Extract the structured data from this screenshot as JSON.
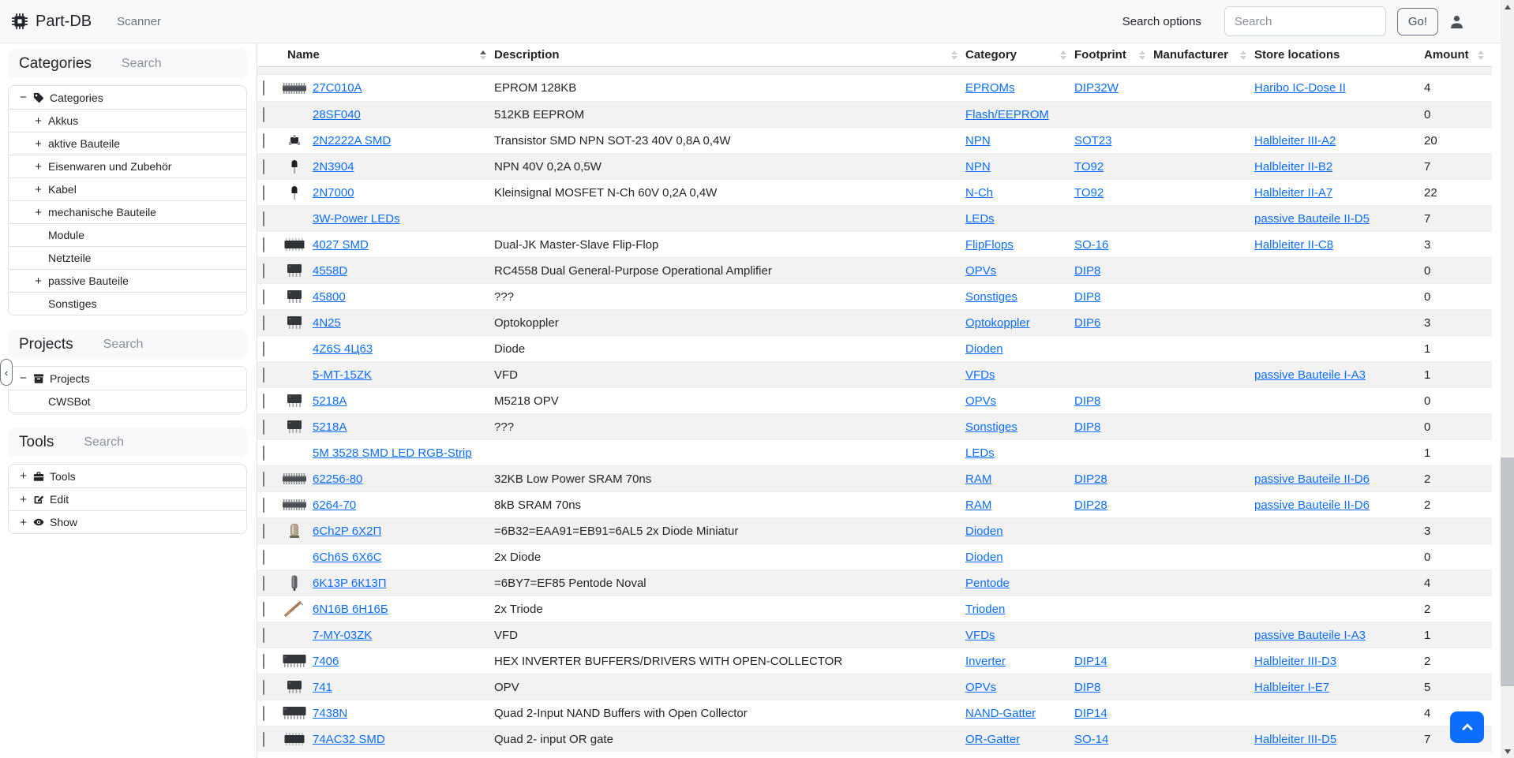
{
  "navbar": {
    "brand": "Part-DB",
    "items": [
      {
        "label": "Scanner"
      }
    ],
    "search_options_label": "Search options",
    "search_placeholder": "Search",
    "go_label": "Go!"
  },
  "sidebar": {
    "panels": [
      {
        "id": "categories",
        "title": "Categories",
        "search_placeholder": "Search",
        "items": [
          {
            "label": "Categories",
            "toggle": "minus",
            "icon": "tag-icon",
            "level": 0
          },
          {
            "label": "Akkus",
            "toggle": "plus",
            "icon": null,
            "level": 1
          },
          {
            "label": "aktive Bauteile",
            "toggle": "plus",
            "icon": null,
            "level": 1
          },
          {
            "label": "Eisenwaren und Zubehör",
            "toggle": "plus",
            "icon": null,
            "level": 1
          },
          {
            "label": "Kabel",
            "toggle": "plus",
            "icon": null,
            "level": 1
          },
          {
            "label": "mechanische Bauteile",
            "toggle": "plus",
            "icon": null,
            "level": 1
          },
          {
            "label": "Module",
            "toggle": "none",
            "icon": null,
            "level": 1
          },
          {
            "label": "Netzteile",
            "toggle": "none",
            "icon": null,
            "level": 1
          },
          {
            "label": "passive Bauteile",
            "toggle": "plus",
            "icon": null,
            "level": 1
          },
          {
            "label": "Sonstiges",
            "toggle": "none",
            "icon": null,
            "level": 1
          }
        ]
      },
      {
        "id": "projects",
        "title": "Projects",
        "search_placeholder": "Search",
        "items": [
          {
            "label": "Projects",
            "toggle": "minus",
            "icon": "archive-icon",
            "level": 0
          },
          {
            "label": "CWSBot",
            "toggle": "none",
            "icon": null,
            "level": 1
          }
        ]
      },
      {
        "id": "tools",
        "title": "Tools",
        "search_placeholder": "Search",
        "items": [
          {
            "label": "Tools",
            "toggle": "plus",
            "icon": "toolbox-icon",
            "level": 0
          },
          {
            "label": "Edit",
            "toggle": "plus",
            "icon": "pencil-square-icon",
            "level": 0
          },
          {
            "label": "Show",
            "toggle": "plus",
            "icon": "eye-icon",
            "level": 0
          }
        ]
      }
    ]
  },
  "table": {
    "columns": [
      {
        "label": "Name",
        "sort": "asc"
      },
      {
        "label": "Description",
        "sort": "unsorted"
      },
      {
        "label": "Category",
        "sort": "unsorted"
      },
      {
        "label": "Footprint",
        "sort": "unsorted"
      },
      {
        "label": "Manufacturer",
        "sort": "unsorted"
      },
      {
        "label": "Store locations",
        "sort": "none"
      },
      {
        "label": "Amount",
        "sort": "unsorted"
      }
    ],
    "rows": [
      {
        "name": "27C010A",
        "description": "EPROM 128KB",
        "category": "EPROMs",
        "footprint": "DIP32W",
        "manufacturer": "",
        "store_location": "Haribo IC-Dose II",
        "amount": "4",
        "thumb": "dip-long"
      },
      {
        "name": "28SF040",
        "description": "512KB EEPROM",
        "category": "Flash/EEPROM",
        "footprint": "",
        "manufacturer": "",
        "store_location": "",
        "amount": "0",
        "thumb": null
      },
      {
        "name": "2N2222A SMD",
        "description": "Transistor SMD NPN SOT-23 40V 0,8A 0,4W",
        "category": "NPN",
        "footprint": "SOT23",
        "manufacturer": "",
        "store_location": "Halbleiter III-A2",
        "amount": "20",
        "thumb": "sot23"
      },
      {
        "name": "2N3904",
        "description": "NPN 40V 0,2A 0,5W",
        "category": "NPN",
        "footprint": "TO92",
        "manufacturer": "",
        "store_location": "Halbleiter II-B2",
        "amount": "7",
        "thumb": "to92"
      },
      {
        "name": "2N7000",
        "description": "Kleinsignal MOSFET N-Ch 60V 0,2A 0,4W",
        "category": "N-Ch",
        "footprint": "TO92",
        "manufacturer": "",
        "store_location": "Halbleiter II-A7",
        "amount": "22",
        "thumb": "to92"
      },
      {
        "name": "3W-Power LEDs",
        "description": "",
        "category": "LEDs",
        "footprint": "",
        "manufacturer": "",
        "store_location": "passive Bauteile II-D5",
        "amount": "7",
        "thumb": null
      },
      {
        "name": "4027 SMD",
        "description": "Dual-JK Master-Slave Flip-Flop",
        "category": "FlipFlops",
        "footprint": "SO-16",
        "manufacturer": "",
        "store_location": "Halbleiter II-C8",
        "amount": "3",
        "thumb": "soic"
      },
      {
        "name": "4558D",
        "description": "RC4558 Dual General-Purpose Operational Amplifier",
        "category": "OPVs",
        "footprint": "DIP8",
        "manufacturer": "",
        "store_location": "",
        "amount": "0",
        "thumb": "dip8"
      },
      {
        "name": "45800",
        "description": "???",
        "category": "Sonstiges",
        "footprint": "DIP8",
        "manufacturer": "",
        "store_location": "",
        "amount": "0",
        "thumb": "dip8"
      },
      {
        "name": "4N25",
        "description": "Optokoppler",
        "category": "Optokoppler",
        "footprint": "DIP6",
        "manufacturer": "",
        "store_location": "",
        "amount": "3",
        "thumb": "dip8"
      },
      {
        "name": "4Z6S 4Ц63",
        "description": "Diode",
        "category": "Dioden",
        "footprint": "",
        "manufacturer": "",
        "store_location": "",
        "amount": "1",
        "thumb": null
      },
      {
        "name": "5-MT-15ZK",
        "description": "VFD",
        "category": "VFDs",
        "footprint": "",
        "manufacturer": "",
        "store_location": "passive Bauteile I-A3",
        "amount": "1",
        "thumb": null
      },
      {
        "name": "5218A",
        "description": "M5218 OPV",
        "category": "OPVs",
        "footprint": "DIP8",
        "manufacturer": "",
        "store_location": "",
        "amount": "0",
        "thumb": "dip8"
      },
      {
        "name": "5218A",
        "description": "???",
        "category": "Sonstiges",
        "footprint": "DIP8",
        "manufacturer": "",
        "store_location": "",
        "amount": "0",
        "thumb": "dip8"
      },
      {
        "name": "5M 3528 SMD LED RGB-Strip",
        "description": "",
        "category": "LEDs",
        "footprint": "",
        "manufacturer": "",
        "store_location": "",
        "amount": "1",
        "thumb": null
      },
      {
        "name": "62256-80",
        "description": "32KB Low Power SRAM 70ns",
        "category": "RAM",
        "footprint": "DIP28",
        "manufacturer": "",
        "store_location": "passive Bauteile II-D6",
        "amount": "2",
        "thumb": "dip-long"
      },
      {
        "name": "6264-70",
        "description": "8kB SRAM 70ns",
        "category": "RAM",
        "footprint": "DIP28",
        "manufacturer": "",
        "store_location": "passive Bauteile II-D6",
        "amount": "2",
        "thumb": "dip-long"
      },
      {
        "name": "6Ch2P 6Х2П",
        "description": "=6B32=EAA91=EB91=6AL5 2x Diode Miniatur",
        "category": "Dioden",
        "footprint": "",
        "manufacturer": "",
        "store_location": "",
        "amount": "3",
        "thumb": "tube"
      },
      {
        "name": "6Ch6S 6X6C",
        "description": "2x Diode",
        "category": "Dioden",
        "footprint": "",
        "manufacturer": "",
        "store_location": "",
        "amount": "0",
        "thumb": null
      },
      {
        "name": "6K13P 6К13П",
        "description": "=6BY7=EF85 Pentode Noval",
        "category": "Pentode",
        "footprint": "",
        "manufacturer": "",
        "store_location": "",
        "amount": "4",
        "thumb": "tube-v"
      },
      {
        "name": "6N16B 6Н16Б",
        "description": "2x Triode",
        "category": "Trioden",
        "footprint": "",
        "manufacturer": "",
        "store_location": "",
        "amount": "2",
        "thumb": "tube-d"
      },
      {
        "name": "7-MY-03ZK",
        "description": "VFD",
        "category": "VFDs",
        "footprint": "",
        "manufacturer": "",
        "store_location": "passive Bauteile I-A3",
        "amount": "1",
        "thumb": null
      },
      {
        "name": "7406",
        "description": "HEX INVERTER BUFFERS/DRIVERS WITH OPEN-COLLECTOR",
        "category": "Inverter",
        "footprint": "DIP14",
        "manufacturer": "",
        "store_location": "Halbleiter III-D3",
        "amount": "2",
        "thumb": "dip14"
      },
      {
        "name": "741",
        "description": "OPV",
        "category": "OPVs",
        "footprint": "DIP8",
        "manufacturer": "",
        "store_location": "Halbleiter I-E7",
        "amount": "5",
        "thumb": "dip8"
      },
      {
        "name": "7438N",
        "description": "Quad 2-Input NAND Buffers with Open Collector",
        "category": "NAND-Gatter",
        "footprint": "DIP14",
        "manufacturer": "",
        "store_location": "",
        "amount": "4",
        "thumb": "dip14"
      },
      {
        "name": "74AC32 SMD",
        "description": "Quad 2- input OR gate",
        "category": "OR-Gatter",
        "footprint": "SO-14",
        "manufacturer": "",
        "store_location": "Halbleiter III-D5",
        "amount": "7",
        "thumb": "soic"
      }
    ]
  },
  "colors": {
    "link": "#0d6efd",
    "accent": "#0d6efd",
    "text": "#212529",
    "muted": "#6c757d",
    "stripe": "#f2f2f2",
    "border": "#dee2e6"
  }
}
